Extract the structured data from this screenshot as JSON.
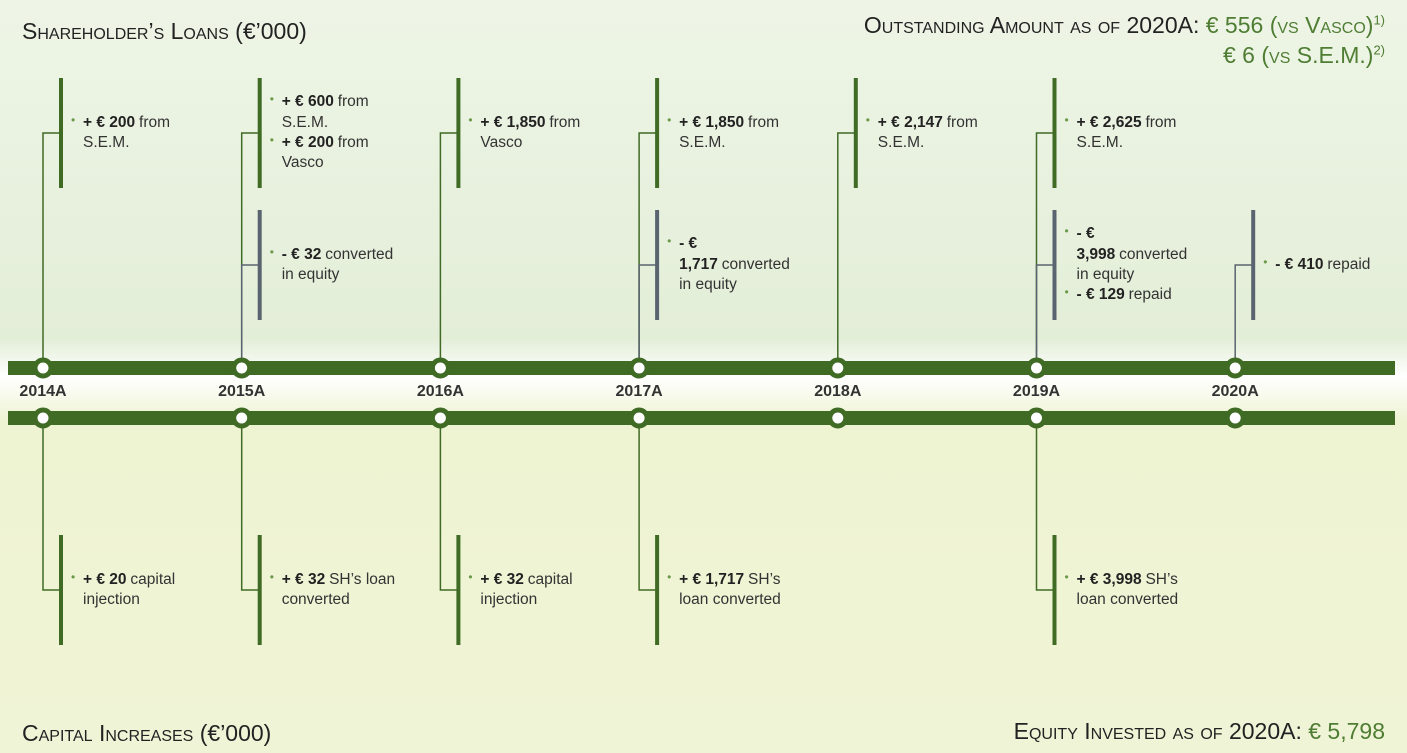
{
  "header": {
    "title": "Shareholder’s Loans (€’000)",
    "outstanding": {
      "label": "Outstanding Amount as of 2020A:",
      "vasco": "€ 556 (vs Vasco)",
      "vasco_note": "1)",
      "sem": "€ 6 (vs S.E.M.)",
      "sem_note": "2)"
    }
  },
  "timeline": {
    "years": [
      {
        "label": "2014A",
        "additions": [
          {
            "amount": "+ € 200",
            "text": "from S.E.M."
          }
        ],
        "capital": [
          {
            "amount": "+ € 20",
            "text": "capital injection"
          }
        ]
      },
      {
        "label": "2015A",
        "additions": [
          {
            "amount": "+ € 600",
            "text": "from S.E.M."
          },
          {
            "amount": "+ € 200",
            "text": "from Vasco"
          }
        ],
        "reductions": [
          {
            "amount": "- € 32",
            "text": "converted in equity"
          }
        ],
        "capital": [
          {
            "amount": "+ € 32",
            "text": "SH’s loan converted"
          }
        ]
      },
      {
        "label": "2016A",
        "additions": [
          {
            "amount": "+ € 1,850",
            "text": "from Vasco"
          }
        ],
        "capital": [
          {
            "amount": "+ € 32",
            "text": "capital injection"
          }
        ]
      },
      {
        "label": "2017A",
        "additions": [
          {
            "amount": "+ € 1,850",
            "text": "from S.E.M."
          }
        ],
        "reductions": [
          {
            "amount": "- € 1,717",
            "text": "converted in equity"
          }
        ],
        "capital": [
          {
            "amount": "+ € 1,717",
            "text": "SH’s loan converted"
          }
        ]
      },
      {
        "label": "2018A",
        "additions": [
          {
            "amount": "+ € 2,147",
            "text": "from S.E.M."
          }
        ]
      },
      {
        "label": "2019A",
        "additions": [
          {
            "amount": "+ € 2,625",
            "text": "from S.E.M."
          }
        ],
        "reductions": [
          {
            "amount": "- € 3,998",
            "text": "converted in equity"
          },
          {
            "amount": "- € 129",
            "text": "repaid"
          }
        ],
        "capital": [
          {
            "amount": "+ € 3,998",
            "text": "SH’s loan converted"
          }
        ]
      },
      {
        "label": "2020A",
        "reductions": [
          {
            "amount": "- € 410",
            "text": "repaid"
          }
        ]
      }
    ]
  },
  "footer": {
    "title": "Capital Increases (€’000)",
    "equity_label": "Equity Invested as of 2020A:",
    "equity_value": "€ 5,798"
  }
}
